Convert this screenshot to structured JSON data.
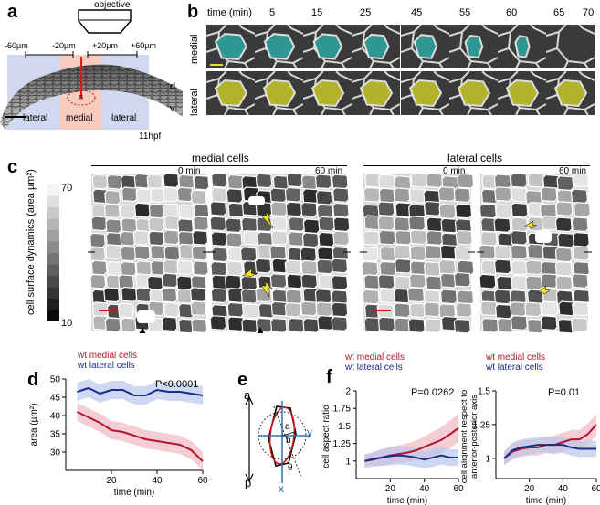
{
  "panels": {
    "a": {
      "label": "a",
      "objective": "objective",
      "ticks": [
        "-60µm",
        "-20µm",
        "+20µm",
        "+60µm"
      ],
      "regions": [
        "lateral",
        "medial",
        "lateral"
      ],
      "n_label": "n",
      "d_label": "d",
      "v_label": "v",
      "stage": "11hpf"
    },
    "b": {
      "label": "b",
      "time_title": "time (min)",
      "times": [
        "5",
        "15",
        "25",
        "45",
        "55",
        "60",
        "65",
        "70"
      ],
      "row_labels": [
        "medial",
        "lateral"
      ],
      "colors": {
        "medial": "#2f9c96",
        "lateral": "#b9ba2c"
      }
    },
    "c": {
      "label": "c",
      "group_titles": [
        "medial cells",
        "lateral cells"
      ],
      "times": [
        "0 min",
        "60 min",
        "0 min",
        "60 min"
      ],
      "colorbar_title": "cell surface dynamics (area µm²)",
      "colorbar_max": "70",
      "colorbar_min": "10"
    },
    "d": {
      "label": "d",
      "legend": [
        "wt medial cells",
        "wt lateral cells"
      ],
      "pvalue": "P<0.0001"
    },
    "e": {
      "label": "e",
      "axis_a": "a",
      "axis_p": "p",
      "axis_x": "x",
      "axis_y": "y",
      "sym_a": "a",
      "sym_b": "b",
      "sym_theta": "θ"
    },
    "f": {
      "label": "f",
      "legend": [
        "wt medial cells",
        "wt lateral cells"
      ],
      "pvalues": [
        "P=0.0262",
        "P=0.01"
      ]
    }
  },
  "chart_data": [
    {
      "type": "line",
      "xlabel": "time (min)",
      "ylabel": "area (µm²)",
      "xlim": [
        0,
        60
      ],
      "ylim": [
        25,
        50
      ],
      "xticks": [
        20,
        40,
        60
      ],
      "yticks": [
        30,
        35,
        40,
        45,
        50
      ],
      "x": [
        5,
        10,
        15,
        20,
        25,
        30,
        35,
        40,
        45,
        50,
        55,
        60
      ],
      "series": [
        {
          "name": "wt medial cells",
          "color": "#b0162c",
          "band_color": "#f0b9c2",
          "values": [
            41,
            39.5,
            38,
            36,
            35.5,
            34.5,
            33.5,
            33,
            32.5,
            32,
            30.5,
            27.5
          ],
          "err": [
            2.5,
            2.5,
            2.5,
            2.5,
            2.5,
            2.5,
            2.5,
            2.5,
            2.5,
            2.5,
            2.5,
            2.5
          ]
        },
        {
          "name": "wt lateral cells",
          "color": "#1a2c8c",
          "band_color": "#b9c8ee",
          "values": [
            46.5,
            47.5,
            46,
            47,
            47,
            45.5,
            45.5,
            47,
            46.5,
            46.5,
            46,
            45.5
          ],
          "err": [
            2.5,
            2.5,
            2.5,
            2.5,
            2.5,
            2.5,
            2.5,
            2.5,
            2.5,
            2.5,
            2.5,
            2.5
          ]
        }
      ]
    },
    {
      "type": "line",
      "xlabel": "time (min)",
      "ylabel": "cell aspect ratio",
      "xlim": [
        0,
        60
      ],
      "ylim": [
        0.75,
        2.0
      ],
      "xticks": [
        20,
        40,
        60
      ],
      "yticks": [
        1.0,
        1.25,
        1.5,
        1.75,
        2.0
      ],
      "x": [
        5,
        10,
        15,
        20,
        25,
        30,
        35,
        40,
        45,
        50,
        55,
        60
      ],
      "series": [
        {
          "name": "wt medial cells",
          "color": "#b0162c",
          "band_color": "#f0b9c2",
          "values": [
            1.0,
            1.02,
            1.05,
            1.08,
            1.1,
            1.12,
            1.15,
            1.2,
            1.25,
            1.3,
            1.38,
            1.47
          ],
          "err": [
            0.1,
            0.1,
            0.12,
            0.12,
            0.12,
            0.13,
            0.14,
            0.15,
            0.17,
            0.18,
            0.2,
            0.2
          ]
        },
        {
          "name": "wt lateral cells",
          "color": "#1a2c8c",
          "band_color": "#b9c8ee",
          "values": [
            1.0,
            1.03,
            1.05,
            1.07,
            1.08,
            1.07,
            1.05,
            1.02,
            1.05,
            1.08,
            1.05,
            1.05
          ],
          "err": [
            0.08,
            0.1,
            0.12,
            0.13,
            0.13,
            0.13,
            0.13,
            0.12,
            0.13,
            0.13,
            0.12,
            0.12
          ]
        }
      ]
    },
    {
      "type": "line",
      "xlabel": "time (min)",
      "ylabel": "cell alignment respect to anterior-posterior axis",
      "xlim": [
        0,
        60
      ],
      "ylim": [
        0.85,
        1.5
      ],
      "xticks": [
        20,
        40,
        60
      ],
      "yticks": [
        1.0,
        1.25,
        1.5
      ],
      "x": [
        5,
        10,
        15,
        20,
        25,
        30,
        35,
        40,
        45,
        50,
        55,
        60
      ],
      "series": [
        {
          "name": "wt medial cells",
          "color": "#b0162c",
          "band_color": "#f0b9c2",
          "values": [
            1.0,
            1.05,
            1.07,
            1.08,
            1.08,
            1.1,
            1.1,
            1.12,
            1.14,
            1.14,
            1.18,
            1.25
          ],
          "err": [
            0.05,
            0.06,
            0.06,
            0.06,
            0.06,
            0.06,
            0.07,
            0.07,
            0.07,
            0.07,
            0.08,
            0.08
          ]
        },
        {
          "name": "wt lateral cells",
          "color": "#1a2c8c",
          "band_color": "#b9c8ee",
          "values": [
            1.0,
            1.06,
            1.08,
            1.09,
            1.1,
            1.1,
            1.1,
            1.1,
            1.08,
            1.07,
            1.07,
            1.07
          ],
          "err": [
            0.05,
            0.06,
            0.06,
            0.06,
            0.06,
            0.06,
            0.06,
            0.06,
            0.06,
            0.06,
            0.06,
            0.06
          ]
        }
      ]
    }
  ]
}
